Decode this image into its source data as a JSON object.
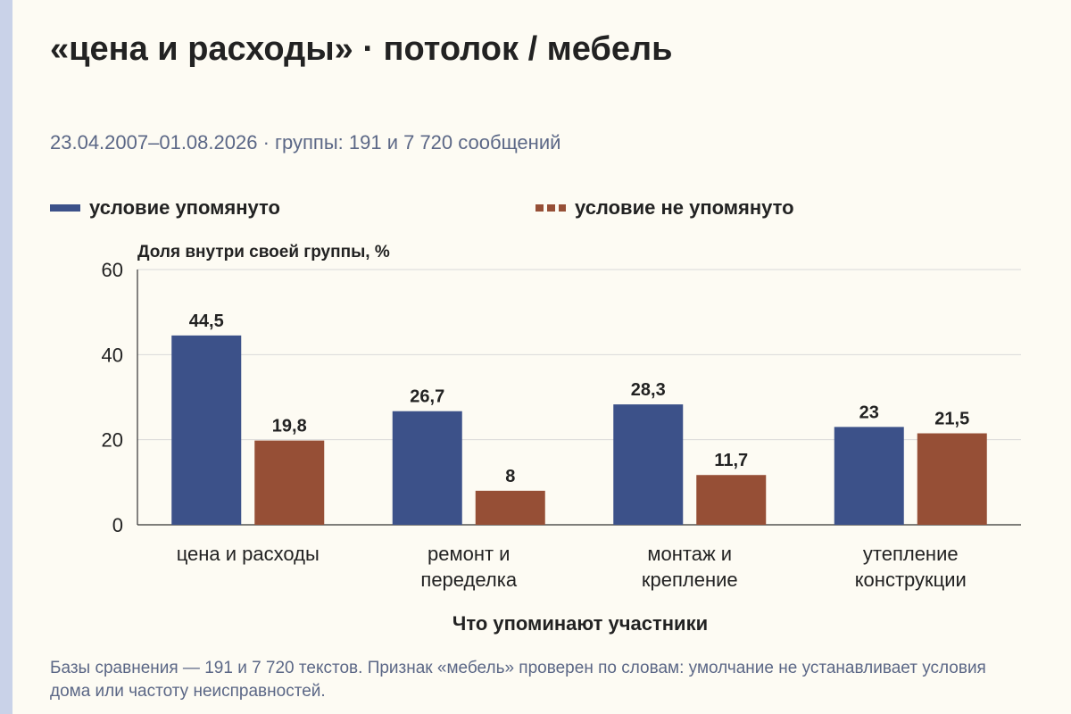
{
  "title": "«цена и расходы» · потолок / мебель",
  "subtitle": "23.04.2007–01.08.2026 · группы: 191 и 7 720 сообщений",
  "colors": {
    "background": "#fdfbf3",
    "series_1": "#3c5189",
    "series_2": "#964f36",
    "muted_text": "#5b6786",
    "grid": "#d9d9d9"
  },
  "chart_data": {
    "type": "bar",
    "ylabel": "Доля внутри своей группы, %",
    "xlabel": "Что упоминают участники",
    "ylim": [
      0,
      60
    ],
    "yticks": [
      0,
      20,
      40,
      60
    ],
    "grid": true,
    "legend_position": "top",
    "categories": [
      [
        "цена и расходы"
      ],
      [
        "ремонт и",
        "переделка"
      ],
      [
        "монтаж и",
        "крепление"
      ],
      [
        "утепление",
        "конструкции"
      ]
    ],
    "series": [
      {
        "name": "условие упомянуто",
        "values": [
          44.5,
          26.7,
          28.3,
          23
        ],
        "labels": [
          "44,5",
          "26,7",
          "28,3",
          "23"
        ]
      },
      {
        "name": "условие не упомянуто",
        "values": [
          19.8,
          8,
          11.7,
          21.5
        ],
        "labels": [
          "19,8",
          "8",
          "11,7",
          "21,5"
        ]
      }
    ]
  },
  "footnote": "Базы сравнения — 191 и 7 720 текстов. Признак «мебель» проверен по словам: умолчание не устанавливает условия дома или частоту неисправностей."
}
